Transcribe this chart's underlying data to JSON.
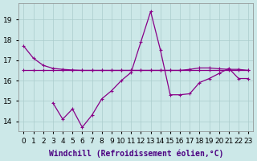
{
  "xlabel": "Windchill (Refroidissement éolien,°C)",
  "x_all": [
    0,
    1,
    2,
    3,
    4,
    5,
    6,
    7,
    8,
    9,
    10,
    11,
    12,
    13,
    14,
    15,
    16,
    17,
    18,
    19,
    20,
    21,
    22,
    23
  ],
  "line_A_x": [
    0,
    1,
    2,
    3,
    4,
    5,
    6,
    7,
    8,
    9,
    10,
    11,
    12,
    13,
    14,
    15,
    16,
    17,
    18,
    19,
    20,
    21,
    22,
    23
  ],
  "line_A_y": [
    17.7,
    17.1,
    16.75,
    16.6,
    16.55,
    16.52,
    16.5,
    16.5,
    16.5,
    16.5,
    16.5,
    16.5,
    16.5,
    16.5,
    16.5,
    16.5,
    16.5,
    16.55,
    16.62,
    16.62,
    16.58,
    16.55,
    16.55,
    16.5
  ],
  "line_B_x": [
    0,
    1,
    2,
    3,
    4,
    5,
    6,
    7,
    8,
    9,
    10,
    11,
    12,
    13,
    14,
    15,
    16,
    17,
    18,
    19,
    20,
    21,
    22,
    23
  ],
  "line_B_y": [
    16.5,
    16.5,
    16.5,
    16.5,
    16.5,
    16.5,
    16.5,
    16.5,
    16.5,
    16.5,
    16.5,
    16.5,
    16.5,
    16.5,
    16.5,
    16.5,
    16.5,
    16.5,
    16.5,
    16.5,
    16.5,
    16.5,
    16.5,
    16.5
  ],
  "line_C_x": [
    3,
    4,
    5,
    6,
    7,
    8,
    9,
    10,
    11,
    12,
    13,
    14,
    15,
    16,
    17,
    18,
    19,
    20,
    21,
    22,
    23
  ],
  "line_C_y": [
    14.9,
    14.1,
    14.6,
    13.7,
    14.3,
    15.1,
    15.5,
    16.0,
    16.4,
    17.9,
    19.4,
    17.5,
    15.3,
    15.3,
    15.35,
    15.9,
    16.1,
    16.35,
    16.6,
    16.1,
    16.1
  ],
  "background_color": "#cce8e8",
  "grid_color": "#aacccc",
  "line_color": "#880088",
  "ylim": [
    13.5,
    19.8
  ],
  "xlim": [
    -0.5,
    23.5
  ],
  "yticks": [
    14,
    15,
    16,
    17,
    18,
    19
  ],
  "xticks": [
    0,
    1,
    2,
    3,
    4,
    5,
    6,
    7,
    8,
    9,
    10,
    11,
    12,
    13,
    14,
    15,
    16,
    17,
    18,
    19,
    20,
    21,
    22,
    23
  ],
  "tick_fontsize": 6.5,
  "label_fontsize": 7
}
